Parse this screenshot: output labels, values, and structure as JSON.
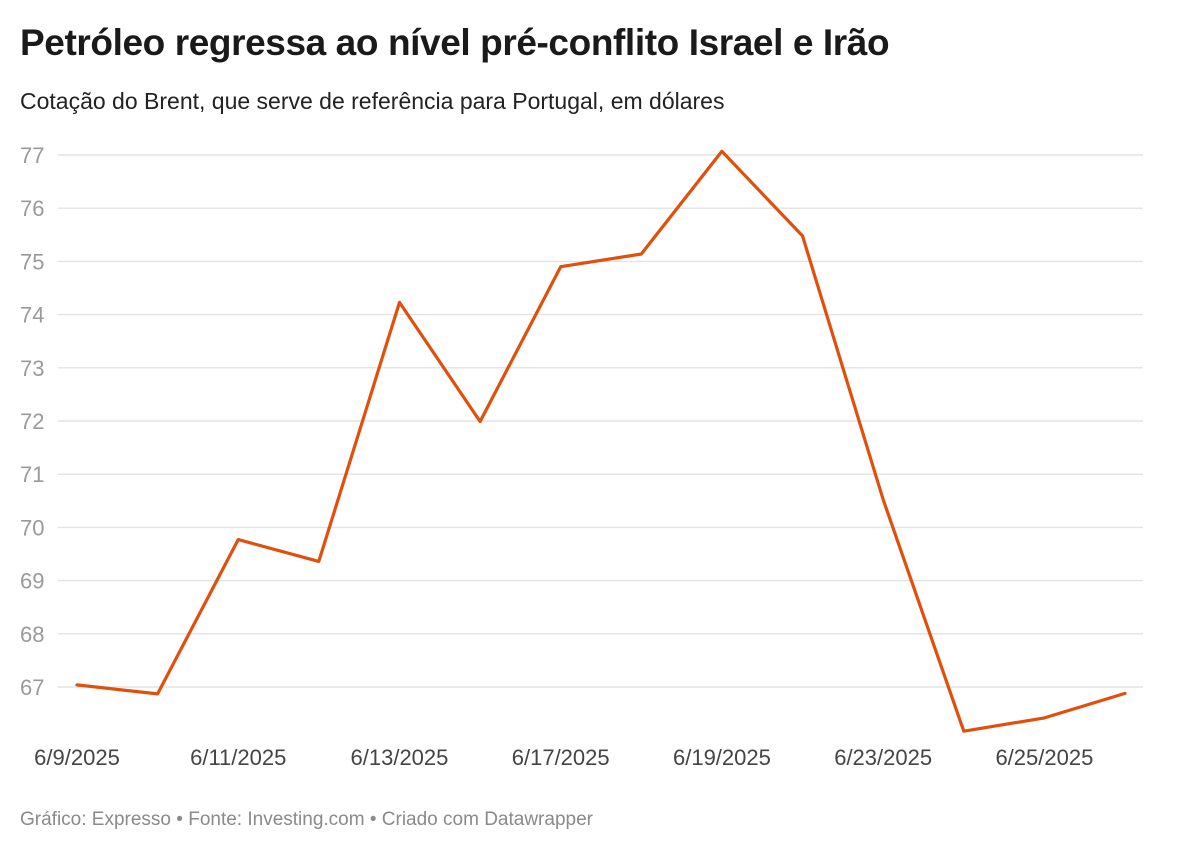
{
  "title": "Petróleo regressa ao nível pré-conflito Israel e Irão",
  "subtitle": "Cotação do Brent, que serve de referência para Portugal, em dólares",
  "footer": "Gráfico: Expresso • Fonte: Investing.com • Criado com Datawrapper",
  "colors": {
    "line": "#e0500c",
    "grid": "#e3e3e3",
    "tick": "#9a9a9a"
  },
  "chart_data": {
    "type": "line",
    "title": "Petróleo regressa ao nível pré-conflito Israel e Irão",
    "subtitle": "Cotação do Brent, que serve de referência para Portugal, em dólares",
    "xlabel": "",
    "ylabel": "",
    "ylim": [
      66,
      77
    ],
    "yticks": [
      67,
      68,
      69,
      70,
      71,
      72,
      73,
      74,
      75,
      76,
      77
    ],
    "x_tick_labels": [
      "6/9/2025",
      "6/11/2025",
      "6/13/2025",
      "6/17/2025",
      "6/19/2025",
      "6/23/2025",
      "6/25/2025"
    ],
    "x_tick_label_indices": [
      0,
      2,
      4,
      6,
      8,
      10,
      12
    ],
    "grid": true,
    "legend": "none",
    "series": [
      {
        "x": [
          "6/9/2025",
          "6/10/2025",
          "6/11/2025",
          "6/12/2025",
          "6/13/2025",
          "6/16/2025",
          "6/17/2025",
          "6/18/2025",
          "6/19/2025",
          "6/20/2025",
          "6/23/2025",
          "6/24/2025",
          "6/25/2025",
          "6/26/2025"
        ],
        "values": [
          67.04,
          66.87,
          69.77,
          69.36,
          74.23,
          71.99,
          74.9,
          75.14,
          77.07,
          75.48,
          70.52,
          66.17,
          66.42,
          66.88
        ]
      }
    ]
  }
}
